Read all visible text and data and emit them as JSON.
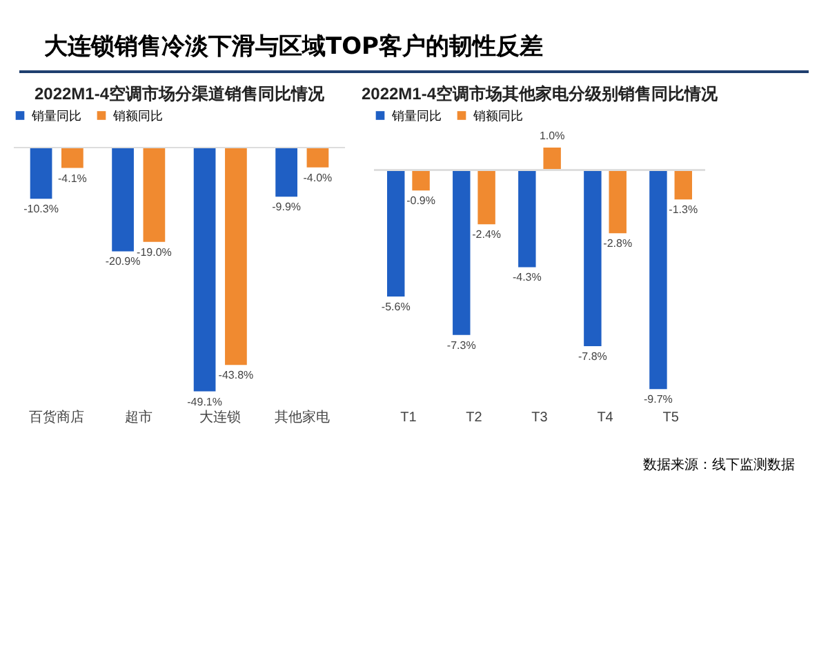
{
  "chart_data": [
    {
      "type": "bar",
      "title": "2022M1-4空调市场分渠道销售同比情况",
      "categories": [
        "百货商店",
        "超市",
        "大连锁",
        "其他家电"
      ],
      "legend": "top",
      "annotations": [
        "大连锁销售冷淡下滑与区域TOP客户的韧性反差"
      ],
      "series": [
        {
          "name": "销量同比",
          "color": "#1f5fc4",
          "values": [
            -10.3,
            -20.9,
            -49.1,
            -9.9
          ],
          "value_labels": [
            "-10.3%",
            "-20.9%",
            "-49.1%",
            "-9.9%"
          ]
        },
        {
          "name": "销额同比",
          "color": "#f08a30",
          "values": [
            -4.1,
            -19.0,
            -43.8,
            -4.0
          ],
          "value_labels": [
            "-4.1%",
            "-19.0%",
            "-43.8%",
            "-4.0%"
          ]
        }
      ]
    },
    {
      "type": "bar",
      "title": "2022M1-4空调市场其他家电分级别销售同比情况",
      "categories": [
        "T1",
        "T2",
        "T3",
        "T4",
        "T5"
      ],
      "legend": "top",
      "annotations": [
        "数据来源：线下监测数据"
      ],
      "series": [
        {
          "name": "销量同比",
          "color": "#1f5fc4",
          "values": [
            -5.6,
            -7.3,
            -4.3,
            -7.8,
            -9.7
          ],
          "value_labels": [
            "-5.6%",
            "-7.3%",
            "-4.3%",
            "-7.8%",
            "-9.7%"
          ]
        },
        {
          "name": "销额同比",
          "color": "#f08a30",
          "values": [
            -0.9,
            -2.4,
            1.0,
            -2.8,
            -1.3
          ],
          "value_labels": [
            "-0.9%",
            "-2.4%",
            "1.0%",
            "-2.8%",
            "-1.3%"
          ]
        }
      ]
    }
  ]
}
